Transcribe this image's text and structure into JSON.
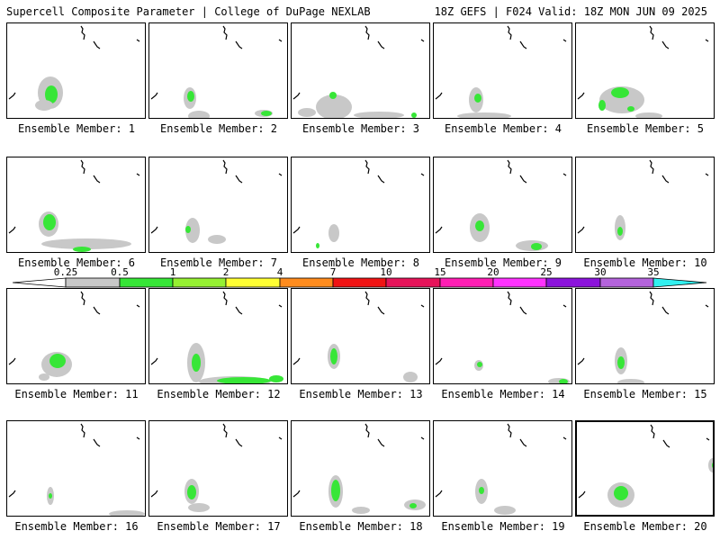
{
  "header": {
    "title": "Supercell Composite Parameter | College of DuPage NEXLAB",
    "run_info": "18Z GEFS | F024 Valid: 18Z MON JUN 09 2025"
  },
  "member_label_prefix": "Ensemble Member: ",
  "members": [
    {
      "label": "Ensemble Member: 1"
    },
    {
      "label": "Ensemble Member: 2"
    },
    {
      "label": "Ensemble Member: 3"
    },
    {
      "label": "Ensemble Member: 4"
    },
    {
      "label": "Ensemble Member: 5"
    },
    {
      "label": "Ensemble Member: 6"
    },
    {
      "label": "Ensemble Member: 7"
    },
    {
      "label": "Ensemble Member: 8"
    },
    {
      "label": "Ensemble Member: 9"
    },
    {
      "label": "Ensemble Member: 10"
    },
    {
      "label": "Ensemble Member: 11"
    },
    {
      "label": "Ensemble Member: 12"
    },
    {
      "label": "Ensemble Member: 13"
    },
    {
      "label": "Ensemble Member: 14"
    },
    {
      "label": "Ensemble Member: 15"
    },
    {
      "label": "Ensemble Member: 16"
    },
    {
      "label": "Ensemble Member: 17"
    },
    {
      "label": "Ensemble Member: 18"
    },
    {
      "label": "Ensemble Member: 19"
    },
    {
      "label": "Ensemble Member: 20"
    }
  ],
  "selected_member": 20,
  "colorbar": {
    "labels": [
      "0.25",
      "0.5",
      "1",
      "2",
      "4",
      "7",
      "10",
      "15",
      "20",
      "25",
      "30",
      "35"
    ],
    "colors": [
      "#c8c8c8",
      "#37e637",
      "#96f032",
      "#ffff32",
      "#ff8c1e",
      "#f01414",
      "#e6145a",
      "#ff1eb4",
      "#ff32ff",
      "#8c14dc",
      "#b464dc",
      "#32f0f0"
    ]
  },
  "colors": {
    "shade_low": "#c8c8c8",
    "shade_mid": "#37e637",
    "shade_high": "#96f032",
    "coastline": "#000000"
  }
}
